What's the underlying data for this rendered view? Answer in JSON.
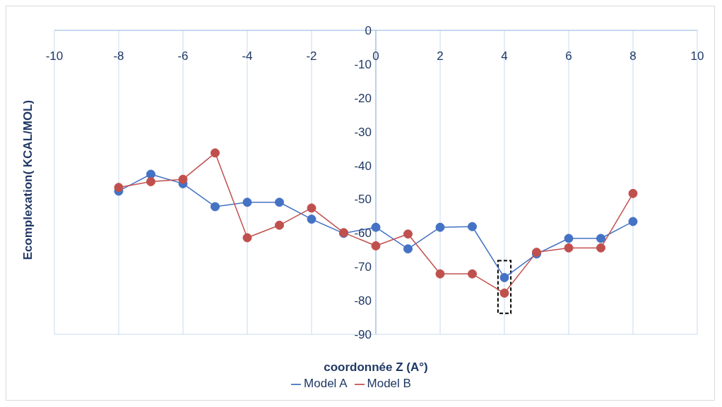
{
  "chart_data": {
    "type": "line",
    "xlabel": "coordonnée Z (A°)",
    "ylabel": "Ecomplexation( KCAL/MOL)",
    "x": [
      -8,
      -7,
      -6,
      -5,
      -4,
      -3,
      -2,
      -1,
      0,
      1,
      2,
      3,
      4,
      5,
      6,
      7,
      8
    ],
    "series": [
      {
        "name": "Model A",
        "color": "#4472c4",
        "values": [
          -47.6,
          -42.6,
          -45.4,
          -52.2,
          -50.9,
          -50.9,
          -55.9,
          -60.1,
          -58.3,
          -64.7,
          -58.3,
          -58.1,
          -73.2,
          -66.2,
          -61.6,
          -61.6,
          -56.6
        ]
      },
      {
        "name": "Model B",
        "color": "#c0504d",
        "values": [
          -46.5,
          -44.8,
          -44.1,
          -36.3,
          -61.4,
          -57.7,
          -52.6,
          -59.9,
          -63.8,
          -60.3,
          -72.1,
          -72.1,
          -77.8,
          -65.7,
          -64.4,
          -64.4,
          -48.3
        ]
      }
    ],
    "xlim": [
      -10,
      10
    ],
    "xticks": [
      -10,
      -8,
      -6,
      -4,
      -2,
      0,
      2,
      4,
      6,
      8,
      10
    ],
    "ylim": [
      -90,
      0
    ],
    "yticks": [
      0,
      -10,
      -20,
      -30,
      -40,
      -50,
      -60,
      -70,
      -80,
      -90
    ],
    "grid": true,
    "legend": "bottom",
    "marker": "circle",
    "line_style": "solid"
  }
}
